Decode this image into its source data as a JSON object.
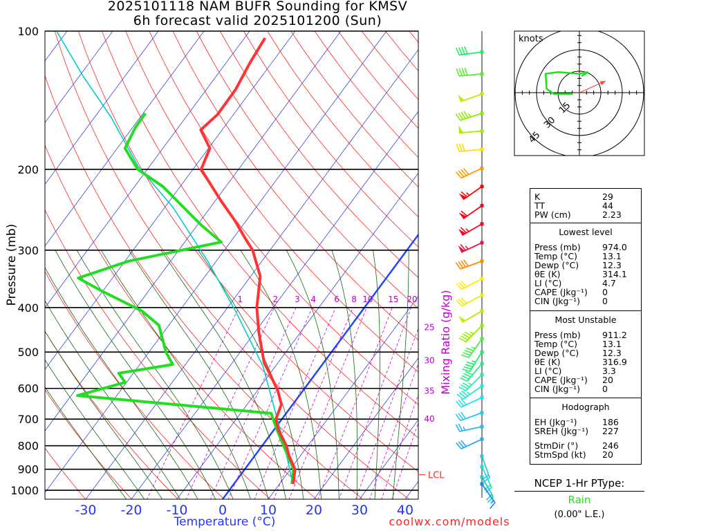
{
  "title": {
    "line1": "2025101118 NAM BUFR Sounding for KMSV",
    "line2": "6h forecast valid 2025101200 (Sun)"
  },
  "axes": {
    "ylabel": "Pressure (mb)",
    "xlabel": "Temperature (°C)",
    "mixing_ratio_label": "Mixing Ratio (g/kg)",
    "lcl_label": "LCL",
    "credit": "coolwx.com/models"
  },
  "chart_data": {
    "type": "line",
    "subtype": "skew-t log-p",
    "title": "2025101118 NAM BUFR Sounding for KMSV — 6h forecast valid 2025101200 (Sun)",
    "xlabel": "Temperature (°C)",
    "ylabel": "Pressure (mb)",
    "pressure_ticks": [
      "100",
      "200",
      "300",
      "400",
      "500",
      "600",
      "700",
      "800",
      "900",
      "1000"
    ],
    "temperature_ticks": [
      "-30",
      "-20",
      "-10",
      "0",
      "10",
      "20",
      "30",
      "40"
    ],
    "mixing_ratio_ticks": [
      "1",
      "2",
      "3",
      "4",
      "6",
      "8",
      "10",
      "15",
      "20",
      "25",
      "30",
      "35",
      "40"
    ],
    "ylim": [
      1050,
      100
    ],
    "xlim_at_bottom": [
      -39,
      43
    ],
    "lcl_pressure": 925,
    "series": [
      {
        "name": "Temperature",
        "color": "#ff3333",
        "points": [
          [
            969,
            13.0
          ],
          [
            900,
            11.0
          ],
          [
            843,
            7.6
          ],
          [
            800,
            5.3
          ],
          [
            739,
            1.0
          ],
          [
            700,
            -1.3
          ],
          [
            650,
            -2.5
          ],
          [
            607,
            -5.5
          ],
          [
            566,
            -9.2
          ],
          [
            528,
            -13.0
          ],
          [
            452,
            -19.2
          ],
          [
            400,
            -23.6
          ],
          [
            342,
            -27.9
          ],
          [
            300,
            -33.8
          ],
          [
            283,
            -37.3
          ],
          [
            259,
            -42.4
          ],
          [
            234,
            -48.8
          ],
          [
            200,
            -58.2
          ],
          [
            180,
            -59.7
          ],
          [
            164,
            -64.7
          ],
          [
            152,
            -63.5
          ],
          [
            134,
            -63.6
          ],
          [
            117,
            -64.8
          ],
          [
            103.5,
            -65.5
          ]
        ]
      },
      {
        "name": "Dewpoint",
        "color": "#22dd22",
        "points": [
          [
            969,
            12.7
          ],
          [
            900,
            10.7
          ],
          [
            800,
            4.7
          ],
          [
            739,
            0.7
          ],
          [
            680,
            -3.3
          ],
          [
            622,
            -48.6
          ],
          [
            582,
            -40.3
          ],
          [
            556,
            -43.2
          ],
          [
            532,
            -32.8
          ],
          [
            501,
            -36.2
          ],
          [
            437,
            -42.2
          ],
          [
            407,
            -48.2
          ],
          [
            367,
            -60.6
          ],
          [
            345,
            -67.5
          ],
          [
            317,
            -59.2
          ],
          [
            288,
            -42.0
          ],
          [
            264,
            -49.3
          ],
          [
            218,
            -63.8
          ],
          [
            200,
            -72.1
          ],
          [
            180,
            -78.3
          ],
          [
            162,
            -79.4
          ],
          [
            151,
            -79.5
          ]
        ]
      },
      {
        "name": "Parcel",
        "color": "#00cccc",
        "points": [
          [
            948,
            12.0
          ],
          [
            785,
            4.1
          ],
          [
            686,
            -1.9
          ],
          [
            537,
            -12.7
          ],
          [
            407,
            -27.7
          ],
          [
            318,
            -41.7
          ],
          [
            242,
            -58.2
          ],
          [
            197,
            -72.5
          ],
          [
            154,
            -86.4
          ],
          [
            125.3,
            -99.2
          ],
          [
            100,
            -112.3
          ]
        ]
      }
    ],
    "winds": [
      {
        "p": 111,
        "dir": 262,
        "spd": 40,
        "color": "#22ee66"
      },
      {
        "p": 124,
        "dir": 265,
        "spd": 40,
        "color": "#55ee22"
      },
      {
        "p": 137,
        "dir": 250,
        "spd": 50,
        "color": "#bbee00"
      },
      {
        "p": 151,
        "dir": 252,
        "spd": 45,
        "color": "#88ee00"
      },
      {
        "p": 165,
        "dir": 265,
        "spd": 50,
        "color": "#aaee00"
      },
      {
        "p": 181,
        "dir": 265,
        "spd": 30,
        "color": "#ffdd00"
      },
      {
        "p": 199,
        "dir": 245,
        "spd": 40,
        "color": "#ff9900"
      },
      {
        "p": 218,
        "dir": 235,
        "spd": 65,
        "color": "#ff0000"
      },
      {
        "p": 240,
        "dir": 235,
        "spd": 60,
        "color": "#ff0011"
      },
      {
        "p": 263,
        "dir": 240,
        "spd": 65,
        "color": "#ff0022"
      },
      {
        "p": 289,
        "dir": 245,
        "spd": 65,
        "color": "#ee1144"
      },
      {
        "p": 317,
        "dir": 250,
        "spd": 40,
        "color": "#ff8800"
      },
      {
        "p": 346,
        "dir": 242,
        "spd": 30,
        "color": "#ffee00"
      },
      {
        "p": 376,
        "dir": 242,
        "spd": 30,
        "color": "#eeee00"
      },
      {
        "p": 407,
        "dir": 240,
        "spd": 50,
        "color": "#bbee00"
      },
      {
        "p": 438,
        "dir": 225,
        "spd": 45,
        "color": "#99ee00"
      },
      {
        "p": 468,
        "dir": 215,
        "spd": 45,
        "color": "#44ee44"
      },
      {
        "p": 500,
        "dir": 212,
        "spd": 45,
        "color": "#22ee66"
      },
      {
        "p": 530,
        "dir": 220,
        "spd": 40,
        "color": "#22ee88"
      },
      {
        "p": 560,
        "dir": 225,
        "spd": 35,
        "color": "#22eeaa"
      },
      {
        "p": 593,
        "dir": 235,
        "spd": 35,
        "color": "#22eecc"
      },
      {
        "p": 628,
        "dir": 245,
        "spd": 30,
        "color": "#22ddee"
      },
      {
        "p": 678,
        "dir": 250,
        "spd": 30,
        "color": "#22ccee"
      },
      {
        "p": 727,
        "dir": 258,
        "spd": 25,
        "color": "#22bbee"
      },
      {
        "p": 774,
        "dir": 245,
        "spd": 30,
        "color": "#22aaee"
      },
      {
        "p": 843,
        "dir": 160,
        "spd": 20,
        "color": "#22ccdd"
      },
      {
        "p": 889,
        "dir": 155,
        "spd": 20,
        "color": "#22ddcc"
      },
      {
        "p": 936,
        "dir": 150,
        "spd": 20,
        "color": "#22ccbb"
      },
      {
        "p": 969,
        "dir": 145,
        "spd": 15,
        "color": "#1188ee"
      }
    ],
    "hodograph": {
      "units_label": "knots",
      "ring_labels": [
        "15",
        "30",
        "45"
      ],
      "trace_uv": [
        [
          1.5,
          11.5
        ],
        [
          6.1,
          14.4
        ],
        [
          -0.3,
          13.2
        ],
        [
          -14.8,
          14.4
        ],
        [
          -23.6,
          13.2
        ],
        [
          -23,
          2.7
        ],
        [
          -18,
          -0.8
        ],
        [
          -4.8,
          -0.8
        ]
      ],
      "storm_motion_uv": [
        18.3,
        8.1
      ]
    }
  },
  "stats": {
    "indices": [
      {
        "label": "K",
        "value": "29"
      },
      {
        "label": "TT",
        "value": "44"
      },
      {
        "label": "PW (cm)",
        "value": "2.23"
      }
    ],
    "lowest": {
      "header": "Lowest level",
      "rows": [
        {
          "label": "Press (mb)",
          "value": "974.0"
        },
        {
          "label": "Temp (°C)",
          "value": "13.1"
        },
        {
          "label": "Dewp (°C)",
          "value": "12.3"
        },
        {
          "label": "θE (K)",
          "value": "314.1"
        },
        {
          "label": "LI (°C)",
          "value": "4.7"
        },
        {
          "label": "CAPE (Jkg⁻¹)",
          "value": "0"
        },
        {
          "label": "CIN (Jkg⁻¹)",
          "value": "0"
        }
      ]
    },
    "most_unstable": {
      "header": "Most Unstable",
      "rows": [
        {
          "label": "Press (mb)",
          "value": "911.2"
        },
        {
          "label": "Temp (°C)",
          "value": "13.1"
        },
        {
          "label": "Dewp (°C)",
          "value": "12.3"
        },
        {
          "label": "θE (K)",
          "value": "316.9"
        },
        {
          "label": "LI (°C)",
          "value": "3.3"
        },
        {
          "label": "CAPE (Jkg⁻¹)",
          "value": "20"
        },
        {
          "label": "CIN (Jkg⁻¹)",
          "value": "0"
        }
      ]
    },
    "hodograph": {
      "header": "Hodograph",
      "rows": [
        {
          "label": "EH (Jkg⁻¹)",
          "value": "186"
        },
        {
          "label": "SREH (Jkg⁻¹)",
          "value": "227"
        },
        {
          "label": "StmDir (°)",
          "value": "246"
        },
        {
          "label": "StmSpd (kt)",
          "value": "20"
        }
      ]
    }
  },
  "ptype": {
    "title": "NCEP 1-Hr PType:",
    "value": "Rain",
    "value_color": "#22dd22",
    "amount": "(0.00\" L.E.)"
  }
}
